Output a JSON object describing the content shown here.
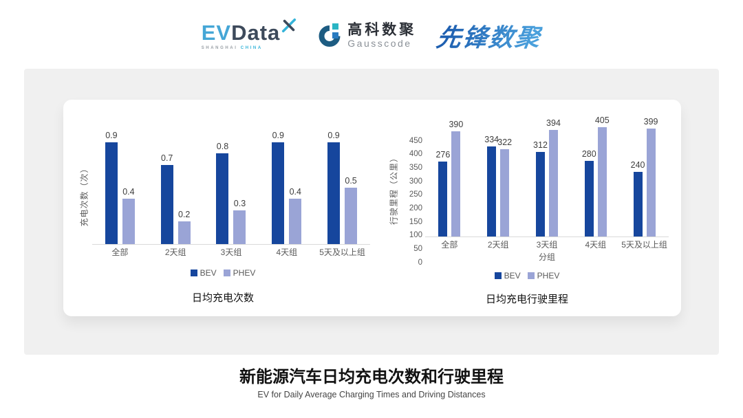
{
  "header": {
    "evdata": {
      "ev": "EV",
      "data": "Data",
      "sub_left": "SHANGHAI",
      "sub_right": "CHINA"
    },
    "gausscode": {
      "cn": "高科数聚",
      "en": "Gausscode"
    },
    "xianfeng": {
      "text": "先锋数聚"
    }
  },
  "colors": {
    "bev": "#16469d",
    "phev": "#9aa4d6",
    "panel_bg": "#f0f0f0",
    "axis_text": "#595959"
  },
  "chart_data": [
    {
      "id": "daily-charging-times",
      "type": "bar",
      "title": "日均充电次数",
      "ylabel": "充电次数（次）",
      "xlabel": "",
      "categories": [
        "全部",
        "2天组",
        "3天组",
        "4天组",
        "5天及以上组"
      ],
      "series": [
        {
          "name": "BEV",
          "color": "#16469d",
          "values": [
            0.9,
            0.7,
            0.8,
            0.9,
            0.9
          ]
        },
        {
          "name": "PHEV",
          "color": "#9aa4d6",
          "values": [
            0.4,
            0.2,
            0.3,
            0.4,
            0.5
          ]
        }
      ],
      "ylim": [
        0,
        1.0
      ],
      "yticks": null,
      "grid": false,
      "legend_position": "bottom"
    },
    {
      "id": "daily-driving-distance",
      "type": "bar",
      "title": "日均充电行驶里程",
      "ylabel": "行驶里程（公里）",
      "xlabel": "分组",
      "categories": [
        "全部",
        "2天组",
        "3天组",
        "4天组",
        "5天及以上组"
      ],
      "series": [
        {
          "name": "BEV",
          "color": "#16469d",
          "values": [
            276,
            334,
            312,
            280,
            240
          ]
        },
        {
          "name": "PHEV",
          "color": "#9aa4d6",
          "values": [
            390,
            322,
            394,
            405,
            399
          ]
        }
      ],
      "ylim": [
        0,
        450
      ],
      "yticks": [
        0,
        50,
        100,
        150,
        200,
        250,
        300,
        350,
        400,
        450
      ],
      "grid": false,
      "legend_position": "bottom"
    }
  ],
  "footer": {
    "title": "新能源汽车日均充电次数和行驶里程",
    "subtitle": "EV for Daily Average Charging Times and Driving Distances"
  }
}
